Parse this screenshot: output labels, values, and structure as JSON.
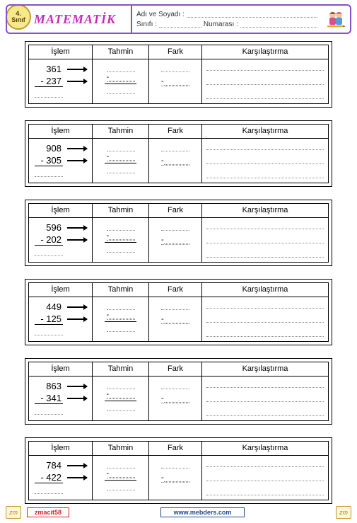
{
  "header": {
    "grade_num": "4.",
    "grade_label": "Sınıf",
    "title": "MATEMATİK",
    "name_label": "Adı ve Soyadı :",
    "class_label": "Sınıfı :",
    "number_label": "Numarası :"
  },
  "columns": {
    "c1": "İşlem",
    "c2": "Tahmin",
    "c3": "Fark",
    "c4": "Karşılaştırma"
  },
  "problems": [
    {
      "a": "361",
      "b": "- 237"
    },
    {
      "a": "908",
      "b": "- 305"
    },
    {
      "a": "596",
      "b": "- 202"
    },
    {
      "a": "449",
      "b": "- 125"
    },
    {
      "a": "863",
      "b": "- 341"
    },
    {
      "a": "784",
      "b": "- 422"
    }
  ],
  "footer": {
    "logo": "zm",
    "author": "zmacit58",
    "url": "www.mebders.com"
  },
  "colors": {
    "header_border": "#8a4fc7",
    "title_color": "#c62bb8",
    "badge_bg": "#f5e98a",
    "author_color": "#d22",
    "url_color": "#1a4b8c"
  }
}
